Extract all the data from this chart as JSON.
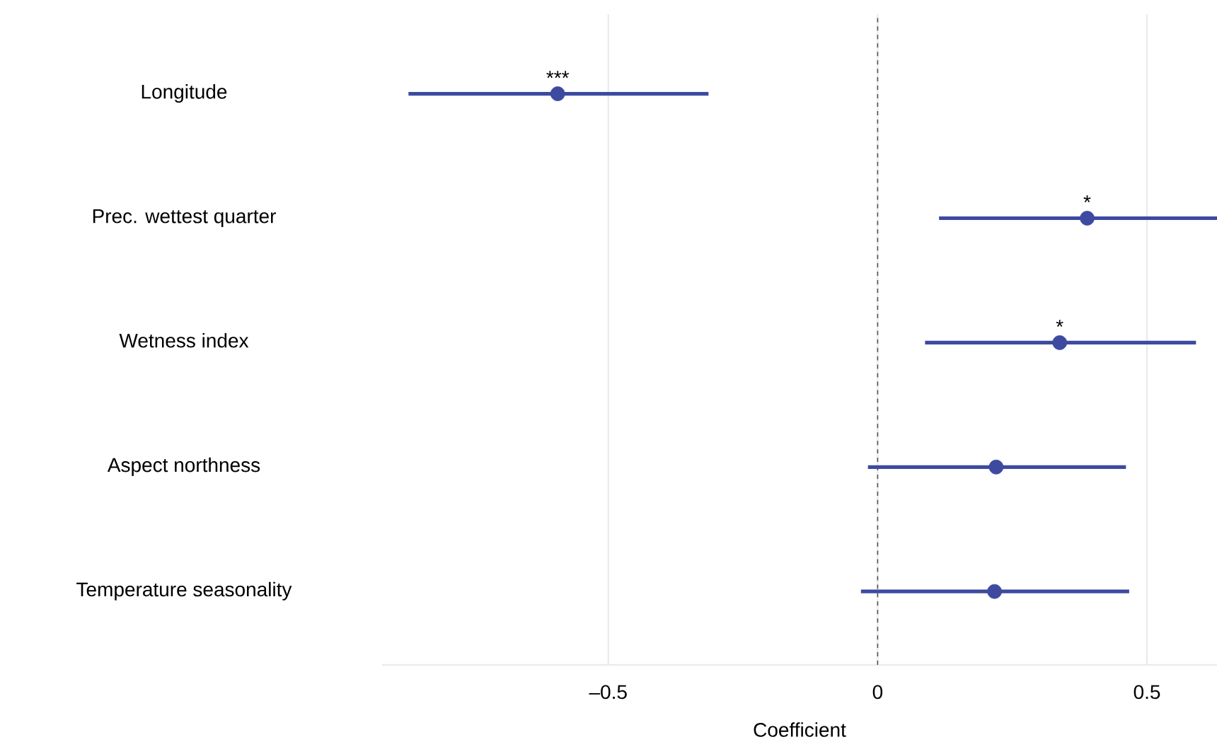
{
  "chart_data": {
    "type": "scatter",
    "orientation": "horizontal",
    "xlabel": "Coefficient",
    "categories": [
      "Longitude",
      "Prec. wettest quarter",
      "Wetness index",
      "Aspect northness",
      "Temperature seasonality"
    ],
    "values": [
      -0.594,
      0.389,
      0.338,
      0.22,
      0.217
    ],
    "value_labels": [
      "***",
      "*",
      "*",
      null,
      null
    ],
    "errors": [
      [
        -0.871,
        -0.314
      ],
      [
        0.114,
        0.63
      ],
      [
        0.088,
        0.591
      ],
      [
        -0.018,
        0.461
      ],
      [
        -0.031,
        0.467
      ]
    ],
    "color": "#3d4aa0",
    "marker": "circle",
    "grid": "x",
    "xlim": [
      -0.92,
      0.63
    ],
    "xticks": [
      {
        "value": -0.5,
        "label": "–0.5"
      },
      {
        "value": 0,
        "label": "0"
      },
      {
        "value": 0.5,
        "label": "0.5"
      }
    ],
    "ref_lines": [
      {
        "axis": "x",
        "value": 0,
        "line_style": "dashed",
        "color": "#555555"
      }
    ]
  }
}
